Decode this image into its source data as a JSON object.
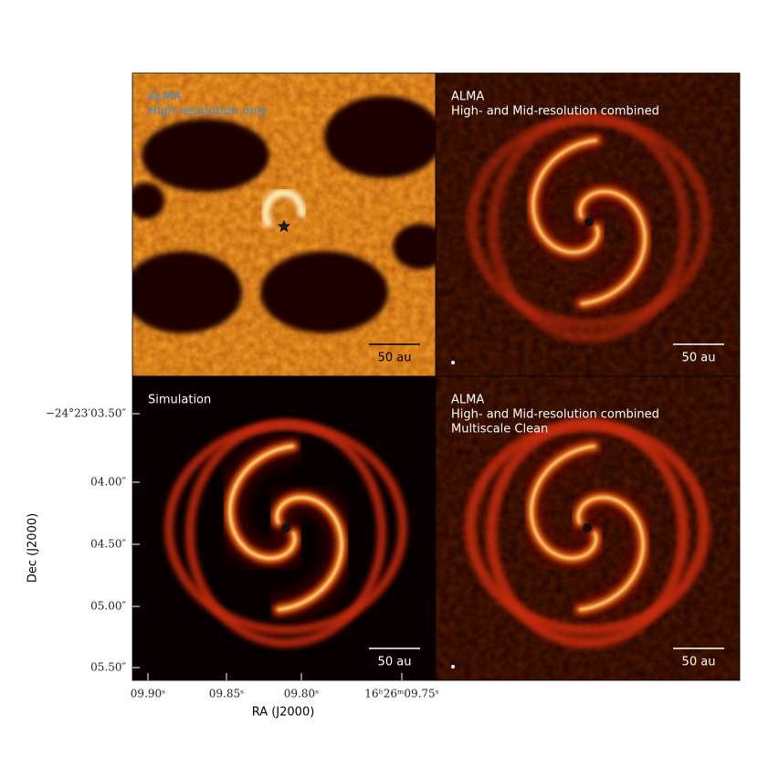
{
  "panels": [
    {
      "labels": [
        "ALMA",
        "High-resolution only"
      ],
      "scale_bar": "50 au"
    },
    {
      "labels": [
        "ALMA",
        "High- and Mid-resolution combined"
      ],
      "scale_bar": "50 au"
    },
    {
      "labels": [
        "Simulation"
      ],
      "scale_bar": "50 au"
    },
    {
      "labels": [
        "ALMA",
        "High- and Mid-resolution combined",
        "Multiscale Clean"
      ],
      "scale_bar": "50 au"
    }
  ],
  "axes": {
    "x_label": "RA (J2000)",
    "y_label": "Dec (J2000)",
    "x_ticks": [
      "09.90ˢ",
      "09.85ˢ",
      "09.80ˢ",
      "16ʰ26ᵐ09.75ˢ"
    ],
    "y_ticks": [
      "−24°23′03.50″",
      "04.00″",
      "04.50″",
      "05.00″",
      "05.50″"
    ]
  }
}
